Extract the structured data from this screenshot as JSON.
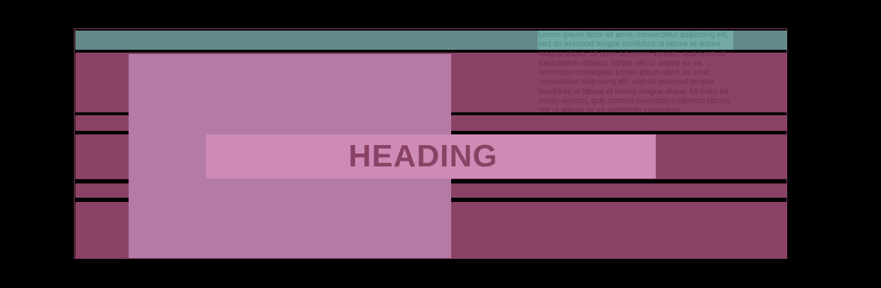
{
  "colors": {
    "background": "#000000",
    "frame_border": "#8b4062",
    "teal_band": "#638a88",
    "dark_band": "#8a4265",
    "light_column": "#b57aa5",
    "heading_box": "#ce8bb6",
    "heading_text": "#8a4265",
    "lorem_teal_bg": "#72a9a4",
    "lorem_text_teal": "#4d8a87",
    "lorem_text_dark": "#6e2e4f"
  },
  "heading": {
    "text": "HEADING"
  },
  "lorem": {
    "text": "Lorem ipsum dolor sit amet, consectetur adipiscing elit, sed do eiusmod tempor incididunt ut labore et dolore magna aliqua. Ut enim ad minim veniam, quis nostrud exercitation ullamco laboris nisi ut aliquip ex ea commodo consequat. Lorem ipsum dolor sit amet, consectetur adipiscing elit, sed do eiusmod tempor incididunt ut labore et dolore magna aliqua. Ut enim ad minim veniam, quis nostrud exercitation ullamco laboris nisi ut aliquip ex ea commodo consequat."
  }
}
